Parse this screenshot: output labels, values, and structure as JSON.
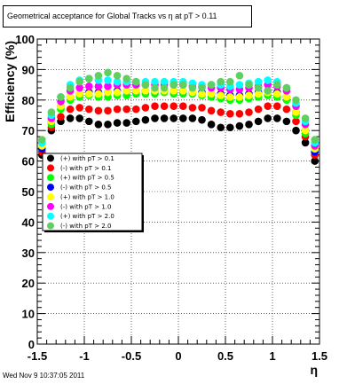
{
  "header": {
    "title": "Geometrical acceptance for Global Tracks vs    η at pT > 0.11"
  },
  "footer": {
    "timestamp": "Wed Nov  9 10:37:05 2011"
  },
  "chart_data": {
    "type": "scatter",
    "title": "Geometrical acceptance for Global Tracks vs    η at pT > 0.11",
    "xlabel": "η",
    "ylabel": "Efficiency (%)",
    "xlim": [
      -1.5,
      1.5
    ],
    "ylim": [
      0,
      100
    ],
    "grid": true,
    "legend_position": "left-middle",
    "x_ticks": [
      -1.5,
      -1,
      -0.5,
      0,
      0.5,
      1,
      1.5
    ],
    "x_tick_labels": [
      "-1.5",
      "-1",
      "-0.5",
      "0",
      "0.5",
      "1",
      "1.5"
    ],
    "y_ticks": [
      0,
      10,
      20,
      30,
      40,
      50,
      60,
      70,
      80,
      90,
      100
    ],
    "y_tick_labels": [
      "0",
      "10",
      "20",
      "30",
      "40",
      "50",
      "60",
      "70",
      "80",
      "90",
      "100"
    ],
    "x": [
      -1.45,
      -1.35,
      -1.25,
      -1.15,
      -1.05,
      -0.95,
      -0.85,
      -0.75,
      -0.65,
      -0.55,
      -0.45,
      -0.35,
      -0.25,
      -0.15,
      -0.05,
      0.05,
      0.15,
      0.25,
      0.35,
      0.45,
      0.55,
      0.65,
      0.75,
      0.85,
      0.95,
      1.05,
      1.15,
      1.25,
      1.35,
      1.45
    ],
    "series": [
      {
        "name": "(+) with pT > 0.1",
        "color": "#000000",
        "values": [
          62,
          70,
          73,
          74,
          74,
          73,
          72,
          72,
          72.5,
          72.5,
          73,
          73.5,
          74,
          74,
          74,
          74,
          74,
          73.5,
          72,
          71,
          71,
          71.5,
          72,
          73,
          74,
          74,
          73,
          70,
          66,
          60
        ]
      },
      {
        "name": "(-) with pT > 0.1",
        "color": "#ff0000",
        "values": [
          63,
          71,
          74.5,
          77,
          77.5,
          77,
          76.5,
          76.5,
          77,
          77,
          77,
          77.5,
          78,
          78,
          78,
          78,
          77.5,
          77.5,
          76.5,
          76,
          75.5,
          75.5,
          76,
          77,
          78,
          78,
          77,
          73,
          68,
          62
        ]
      },
      {
        "name": "(+) with pT > 0.5",
        "color": "#00ff00",
        "values": [
          64,
          72,
          77,
          80,
          81,
          81.5,
          81,
          81,
          81.5,
          81.5,
          82,
          82,
          82,
          82.5,
          82,
          82,
          82,
          81.5,
          81,
          80.5,
          80,
          80,
          80.5,
          81,
          81.5,
          81,
          80,
          75,
          69,
          63
        ]
      },
      {
        "name": "(-) with pT > 0.5",
        "color": "#0000ff",
        "values": [
          64,
          73,
          78,
          81,
          82,
          82.5,
          82.5,
          82.5,
          83,
          83,
          83,
          83,
          83,
          83,
          83,
          83,
          82.5,
          82.5,
          82,
          82,
          81.5,
          81.5,
          82,
          82.5,
          83,
          82.5,
          81,
          76,
          70,
          63
        ]
      },
      {
        "name": "(+) with pT > 1.0",
        "color": "#ffff00",
        "values": [
          65,
          73,
          78,
          81,
          82,
          82,
          82,
          82.5,
          82.5,
          83,
          83,
          83,
          83,
          83,
          83,
          83,
          82.5,
          82,
          82,
          81.5,
          81,
          81,
          81.5,
          82,
          82.5,
          82,
          81,
          76,
          70,
          64
        ]
      },
      {
        "name": "(-) with pT > 1.0",
        "color": "#ff00ff",
        "values": [
          66,
          74,
          79.5,
          83,
          84,
          84.5,
          84.5,
          84.5,
          85,
          85,
          85,
          85,
          85,
          85,
          85,
          85,
          84.5,
          84.5,
          84,
          84,
          83.5,
          83.5,
          84,
          84.5,
          85,
          84.5,
          83,
          78,
          72,
          65
        ]
      },
      {
        "name": "(+) with pT > 2.0",
        "color": "#00ffff",
        "values": [
          66,
          75,
          81,
          85,
          86.5,
          87,
          86.5,
          86.5,
          86,
          86,
          86,
          86,
          86,
          86,
          86,
          86,
          85.5,
          85,
          85,
          85,
          84.5,
          85,
          85.5,
          86,
          86.5,
          86,
          84,
          79,
          73,
          66
        ]
      },
      {
        "name": "(-) with pT > 2.0",
        "color": "#5fcf5f",
        "values": [
          67,
          76,
          81,
          84,
          86,
          87,
          88,
          89,
          88,
          87,
          86,
          85,
          84,
          84,
          85,
          85,
          84,
          84,
          85,
          86,
          86,
          88,
          85,
          84,
          83,
          85,
          84,
          80,
          74,
          67
        ]
      }
    ]
  }
}
